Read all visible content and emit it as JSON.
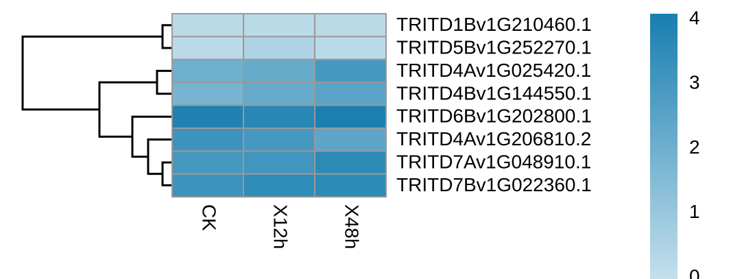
{
  "chart_data": {
    "type": "heatmap",
    "rows": [
      "TRITD1Bv1G210460.1",
      "TRITD5Bv1G252270.1",
      "TRITD4Av1G025420.1",
      "TRITD4Bv1G144550.1",
      "TRITD6Bv1G202800.1",
      "TRITD4Av1G206810.2",
      "TRITD7Av1G048910.1",
      "TRITD7Bv1G022360.1"
    ],
    "columns": [
      "CK",
      "X12h",
      "X48h"
    ],
    "values": [
      [
        0.2,
        0.2,
        0.2
      ],
      [
        0.2,
        0.5,
        0.2
      ],
      [
        2.0,
        2.2,
        3.0
      ],
      [
        1.8,
        2.2,
        2.5
      ],
      [
        3.9,
        3.7,
        4.0
      ],
      [
        3.2,
        3.0,
        2.4
      ],
      [
        3.0,
        3.1,
        3.6
      ],
      [
        3.2,
        3.5,
        3.6
      ]
    ],
    "colorscale": [
      "#c3dfeb",
      "#1b80b1"
    ],
    "zlim": [
      0,
      4
    ],
    "zticks": [
      0,
      1,
      2,
      3,
      4
    ]
  }
}
